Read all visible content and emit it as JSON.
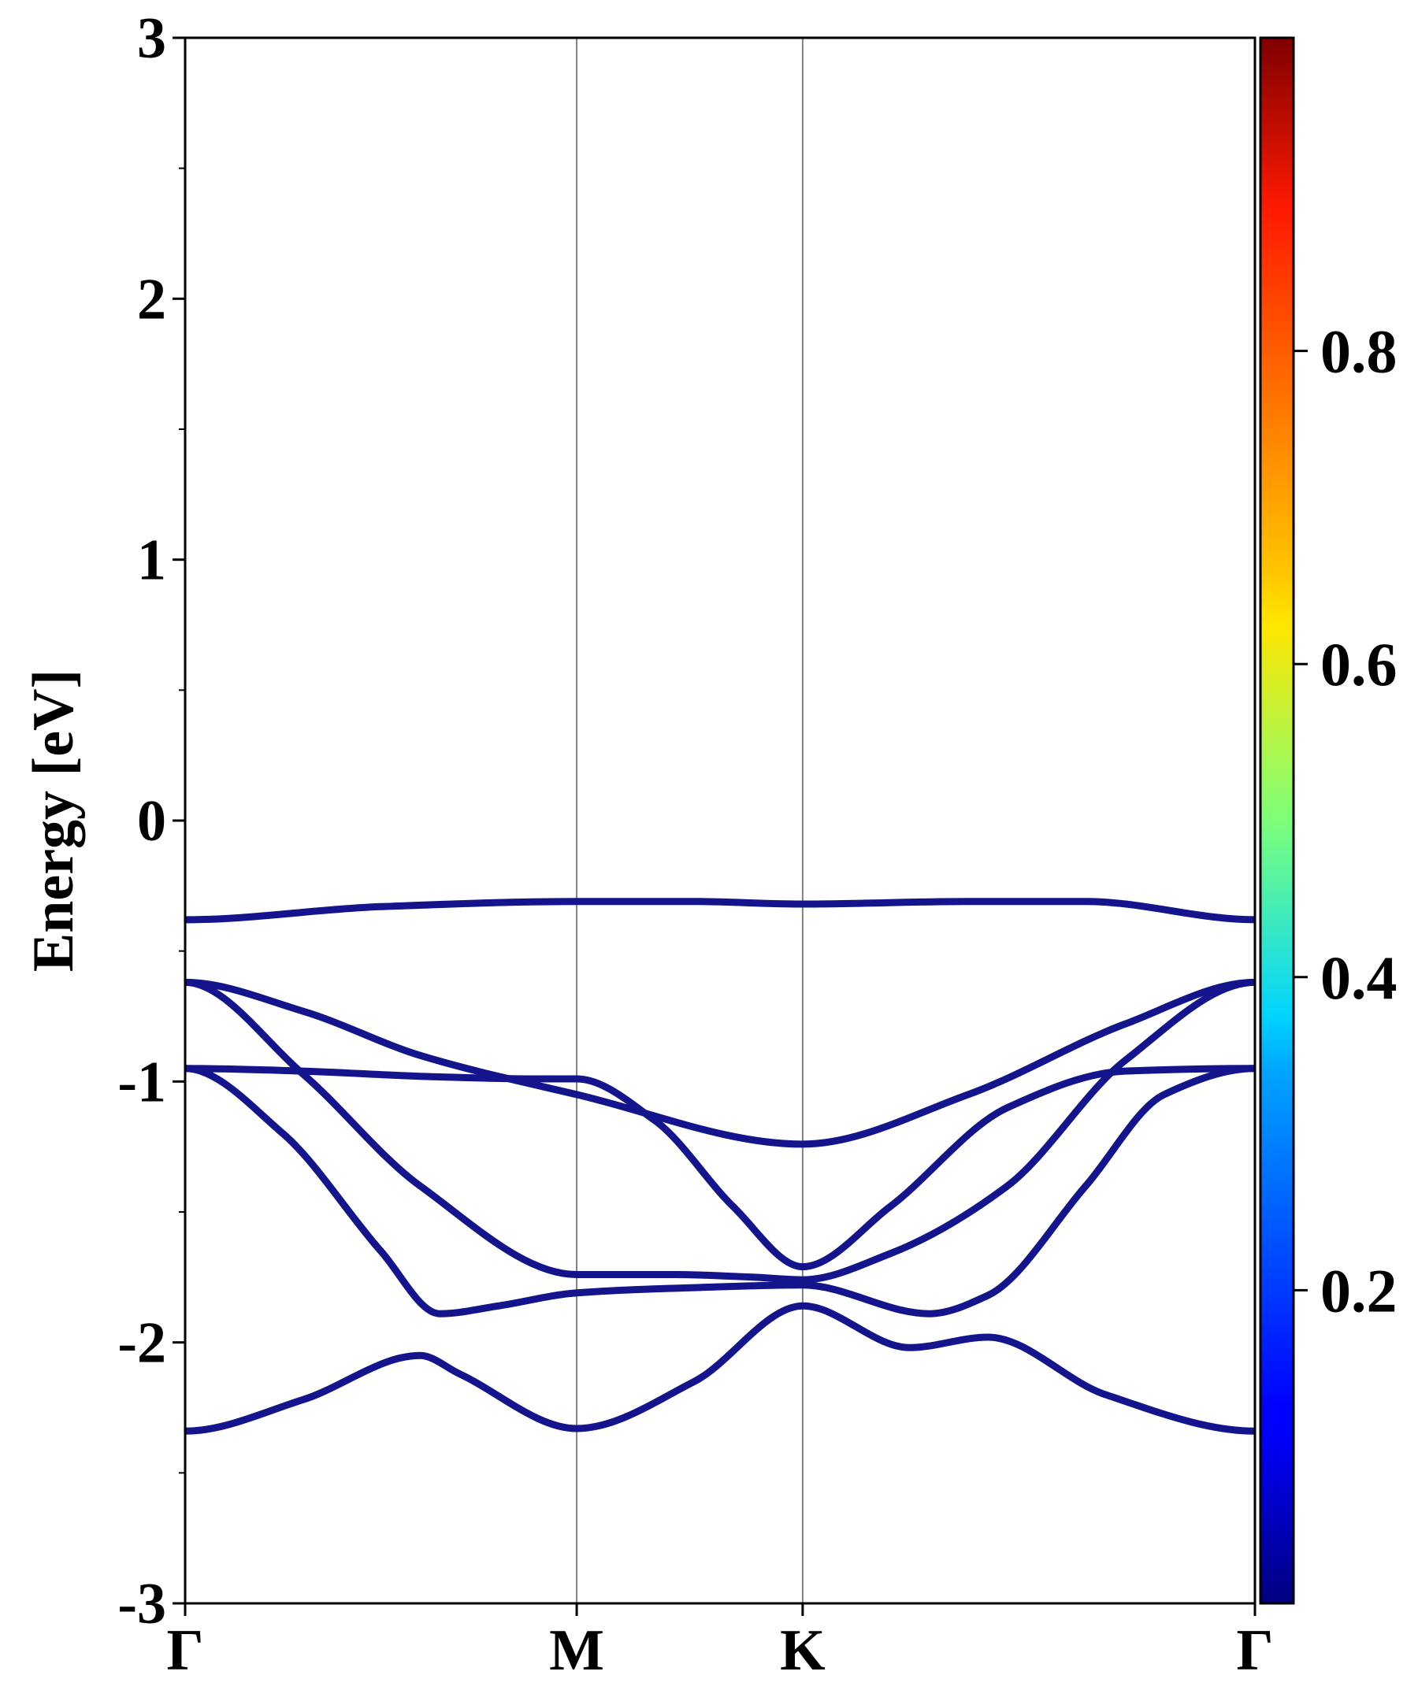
{
  "chart_data": {
    "type": "line",
    "title": "",
    "xlabel": "",
    "ylabel": "Energy [eV]",
    "ylim": [
      -3,
      3
    ],
    "xlim": [
      0,
      2.732
    ],
    "yticks": [
      -3,
      -2,
      -1,
      0,
      1,
      2,
      3
    ],
    "ytick_labels": [
      "-3",
      "-2",
      "-1",
      "0",
      "1",
      "2",
      "3"
    ],
    "high_symmetry_points": [
      {
        "label": "Γ",
        "x": 0
      },
      {
        "label": "M",
        "x": 1.0
      },
      {
        "label": "K",
        "x": 1.577
      },
      {
        "label": "Γ",
        "x": 2.732
      }
    ],
    "colorbar": {
      "colormap": "jet",
      "range": [
        0,
        1
      ],
      "ticks": [
        0.2,
        0.4,
        0.6,
        0.8
      ],
      "tick_labels": [
        "0.2",
        "0.4",
        "0.6",
        "0.8"
      ]
    },
    "line_color": "#14148c",
    "grid": false,
    "series": [
      {
        "x": [
          0,
          0.5,
          1.0,
          1.29,
          1.577,
          2.0,
          2.3,
          2.732
        ],
        "y": [
          -0.38,
          -0.33,
          -0.31,
          -0.31,
          -0.32,
          -0.31,
          -0.31,
          -0.38
        ]
      },
      {
        "x": [
          0,
          0.3,
          0.6,
          1.0,
          1.577,
          2.0,
          2.4,
          2.732
        ],
        "y": [
          -0.62,
          -0.73,
          -0.9,
          -1.05,
          -1.24,
          -1.05,
          -0.78,
          -0.62
        ]
      },
      {
        "x": [
          0,
          0.3,
          0.6,
          1.0,
          1.25,
          1.45,
          1.577,
          1.8,
          2.1,
          2.4,
          2.732
        ],
        "y": [
          -0.62,
          -0.97,
          -1.4,
          -1.74,
          -1.74,
          -1.75,
          -1.76,
          -1.66,
          -1.4,
          -0.92,
          -0.62
        ]
      },
      {
        "x": [
          0,
          0.3,
          0.6,
          0.9,
          1.0,
          1.2,
          1.4,
          1.577,
          1.8,
          2.1,
          2.4,
          2.732
        ],
        "y": [
          -0.95,
          -0.96,
          -0.98,
          -0.99,
          -0.99,
          -1.15,
          -1.48,
          -1.71,
          -1.48,
          -1.1,
          -0.96,
          -0.95
        ]
      },
      {
        "x": [
          0,
          0.25,
          0.5,
          0.65,
          0.8,
          1.0,
          1.3,
          1.577,
          1.9,
          2.05,
          2.3,
          2.5,
          2.732
        ],
        "y": [
          -0.95,
          -1.2,
          -1.65,
          -1.89,
          -1.86,
          -1.81,
          -1.79,
          -1.78,
          -1.89,
          -1.82,
          -1.4,
          -1.05,
          -0.95
        ]
      },
      {
        "x": [
          0,
          0.3,
          0.6,
          0.7,
          1.0,
          1.3,
          1.577,
          1.85,
          2.05,
          2.35,
          2.732
        ],
        "y": [
          -2.34,
          -2.22,
          -2.05,
          -2.12,
          -2.33,
          -2.15,
          -1.86,
          -2.02,
          -1.98,
          -2.2,
          -2.34
        ]
      }
    ]
  }
}
